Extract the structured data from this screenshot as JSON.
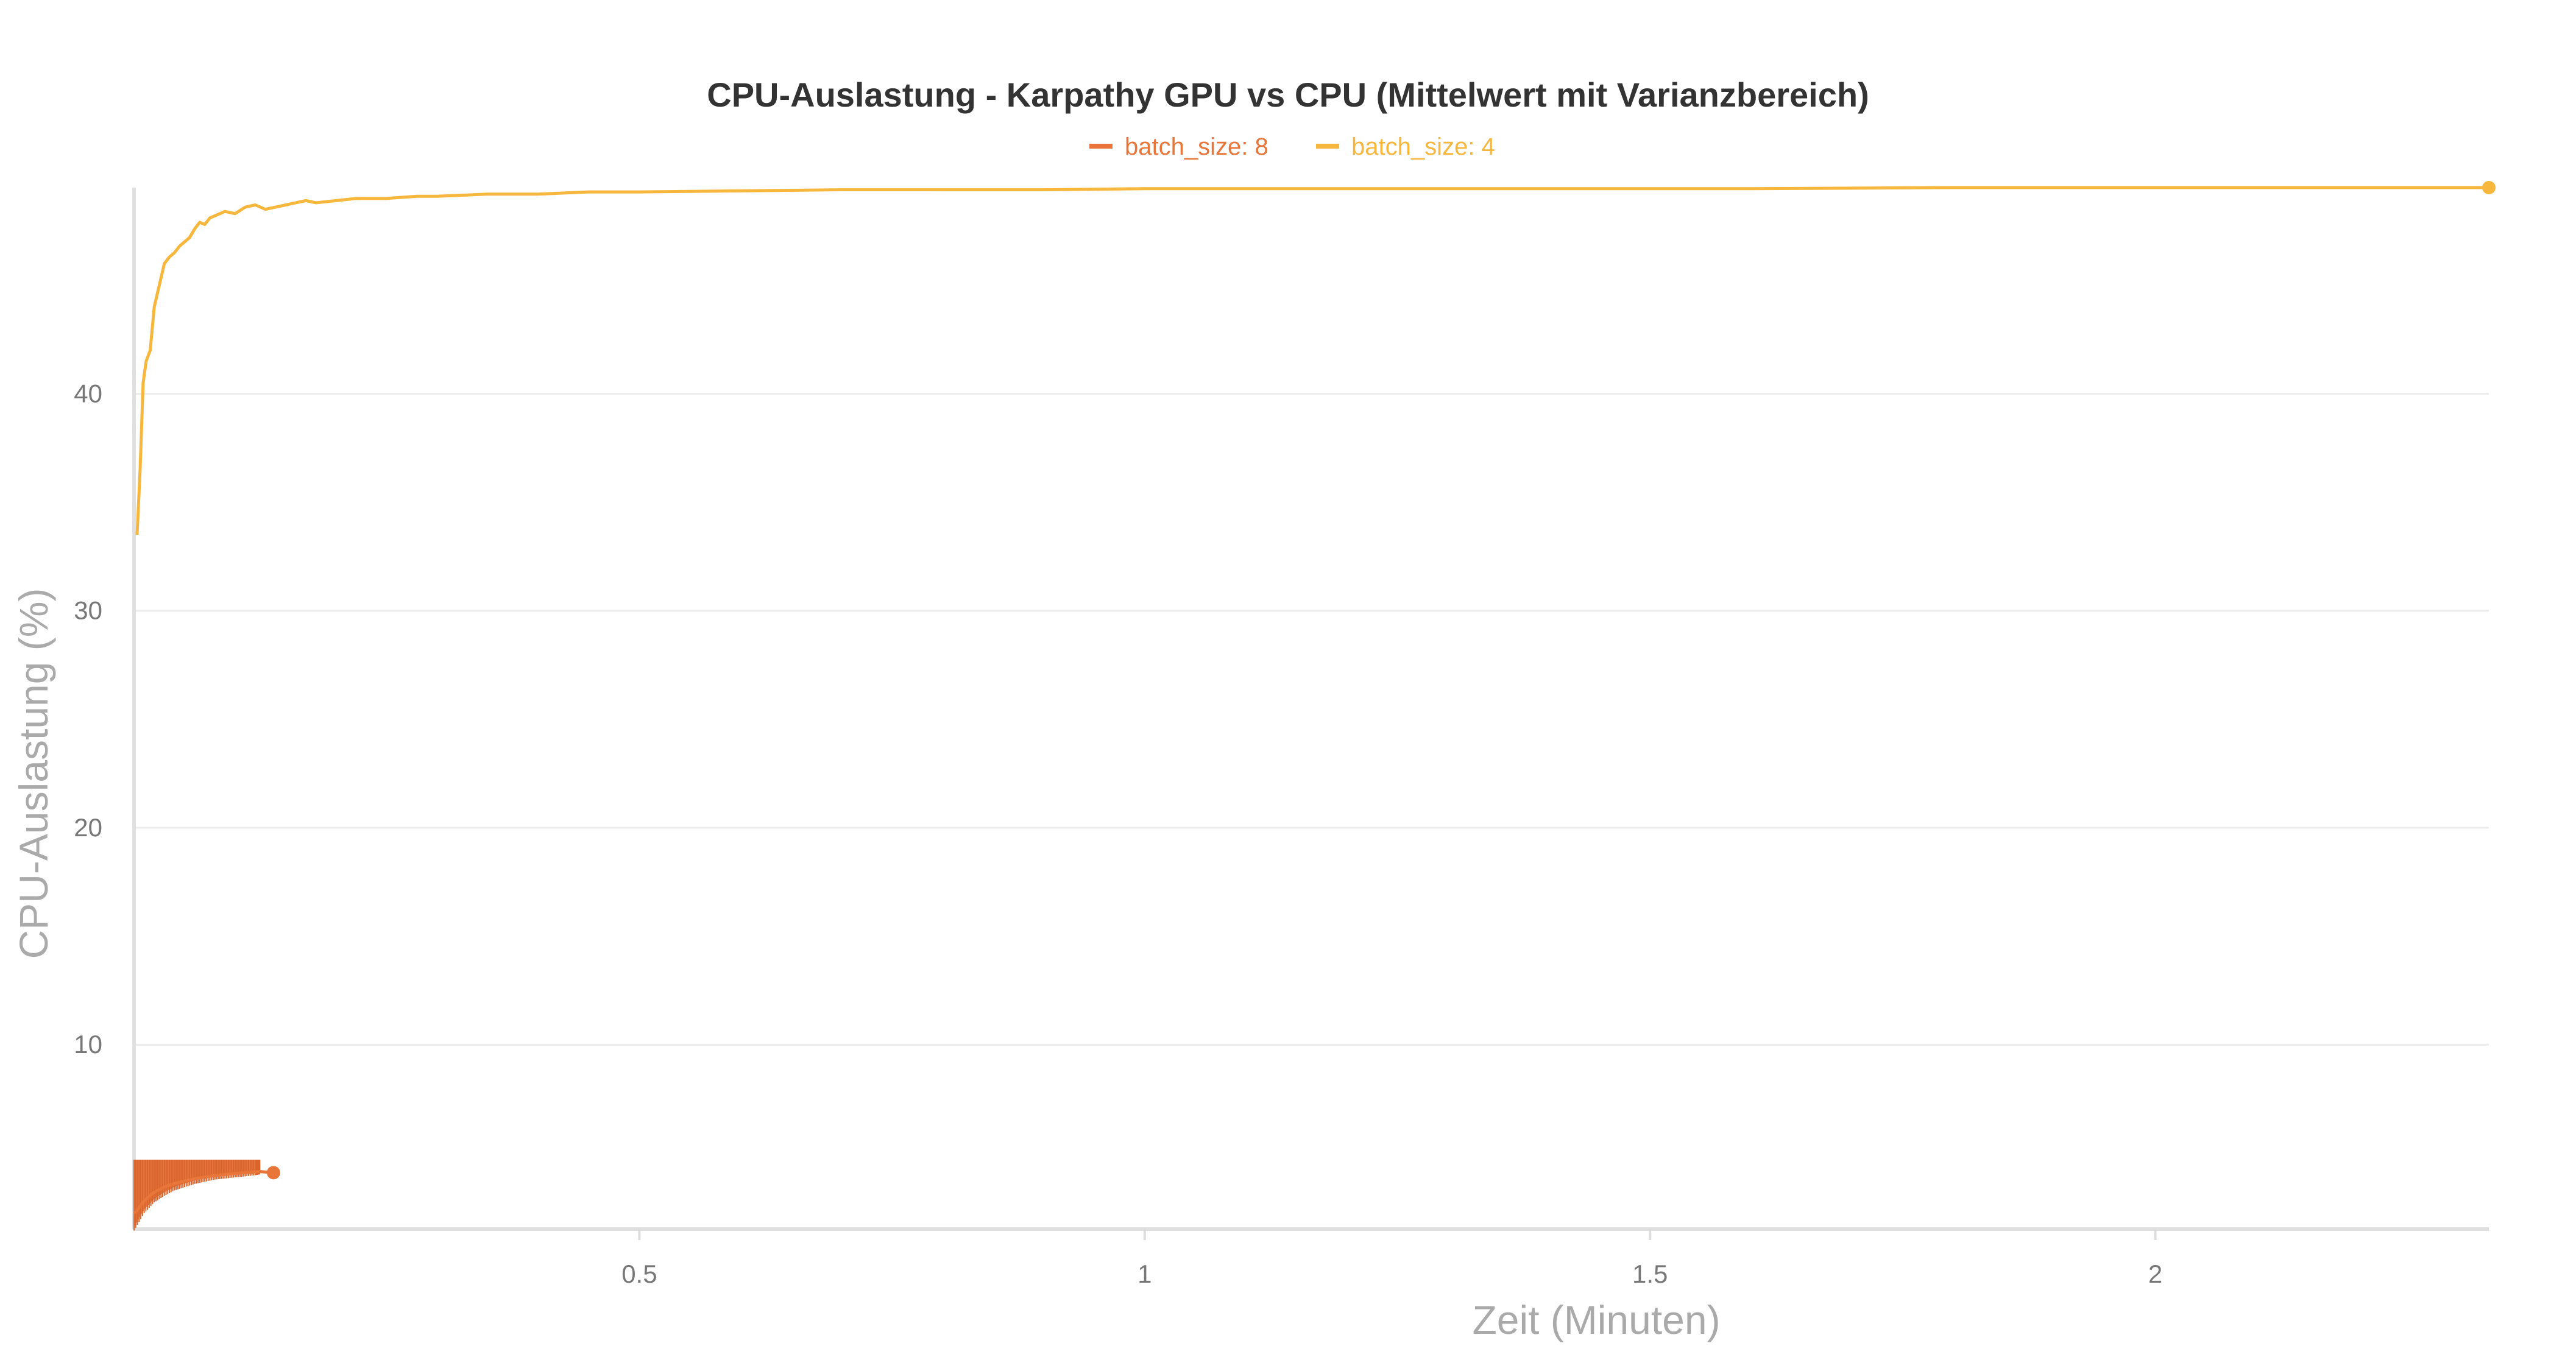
{
  "chart_data": {
    "type": "line",
    "title": "CPU-Auslastung - Karpathy GPU vs CPU (Mittelwert mit Varianzbereich)",
    "xlabel": "Zeit (Minuten)",
    "ylabel": "CPU-Auslastung (%)",
    "xlim": [
      0,
      2.33
    ],
    "ylim": [
      1.5,
      49.5
    ],
    "x_ticks": [
      0.5,
      1,
      1.5,
      2
    ],
    "x_tick_labels": [
      "0.5",
      "1",
      "1.5",
      "2"
    ],
    "y_ticks": [
      10,
      20,
      30,
      40
    ],
    "y_tick_labels": [
      "10",
      "20",
      "30",
      "40"
    ],
    "grid": true,
    "legend_placement": "top-center",
    "series": [
      {
        "name": "batch_size: 8",
        "color": "#e8753a",
        "band": {
          "x": [
            0.0,
            0.01,
            0.02,
            0.03,
            0.04,
            0.05,
            0.06,
            0.07,
            0.08,
            0.09,
            0.1,
            0.11,
            0.12,
            0.125
          ],
          "upper": [
            4.7,
            4.7,
            4.7,
            4.7,
            4.7,
            4.7,
            4.7,
            4.7,
            4.7,
            4.7,
            4.7,
            4.7,
            4.7,
            4.7
          ],
          "lower": [
            1.6,
            2.4,
            2.9,
            3.2,
            3.45,
            3.6,
            3.75,
            3.85,
            3.95,
            4.0,
            4.05,
            4.1,
            4.15,
            4.2
          ]
        },
        "x": [
          0.0,
          0.01,
          0.02,
          0.03,
          0.04,
          0.05,
          0.06,
          0.07,
          0.08,
          0.09,
          0.1,
          0.11,
          0.12,
          0.125,
          0.138
        ],
        "y": [
          2.2,
          2.8,
          3.2,
          3.45,
          3.6,
          3.72,
          3.82,
          3.9,
          3.97,
          4.02,
          4.07,
          4.1,
          4.13,
          4.15,
          4.1
        ]
      },
      {
        "name": "batch_size: 4",
        "color": "#f6b73c",
        "x": [
          0.003,
          0.006,
          0.009,
          0.012,
          0.016,
          0.02,
          0.025,
          0.03,
          0.035,
          0.04,
          0.045,
          0.05,
          0.055,
          0.06,
          0.065,
          0.07,
          0.075,
          0.08,
          0.09,
          0.1,
          0.11,
          0.12,
          0.13,
          0.14,
          0.15,
          0.16,
          0.17,
          0.18,
          0.2,
          0.22,
          0.25,
          0.28,
          0.3,
          0.35,
          0.4,
          0.45,
          0.5,
          0.6,
          0.7,
          0.8,
          0.9,
          1.0,
          1.2,
          1.4,
          1.6,
          1.8,
          2.0,
          2.2,
          2.33
        ],
        "y": [
          33.5,
          36.5,
          40.5,
          41.5,
          42.0,
          44.0,
          45.0,
          46.0,
          46.3,
          46.5,
          46.8,
          47.0,
          47.2,
          47.6,
          47.9,
          47.8,
          48.1,
          48.2,
          48.4,
          48.3,
          48.6,
          48.7,
          48.5,
          48.6,
          48.7,
          48.8,
          48.9,
          48.8,
          48.9,
          49.0,
          49.0,
          49.1,
          49.1,
          49.2,
          49.2,
          49.3,
          49.3,
          49.35,
          49.4,
          49.4,
          49.4,
          49.45,
          49.45,
          49.45,
          49.45,
          49.5,
          49.5,
          49.5,
          49.5
        ]
      }
    ]
  }
}
